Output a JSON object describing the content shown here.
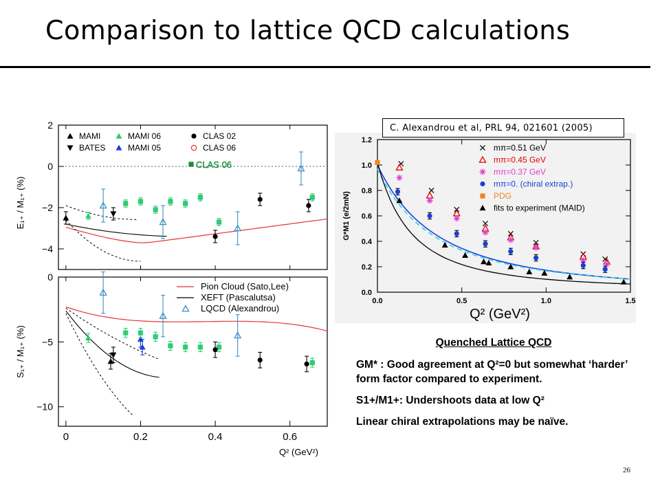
{
  "slide": {
    "title": "Comparison to lattice QCD calculations",
    "citation": "C. Alexandrou et al, PRL 94, 021601 (2005)",
    "page_number": "26",
    "notes_heading": "Quenched Lattice QCD",
    "notes": [
      "GM* : Good agreement at Q²=0 but somewhat ‘harder’ form factor compared to experiment.",
      "S1+/M1+: Undershoots data at low Q²",
      "Linear chiral extrapolations may be naïve."
    ]
  },
  "colors": {
    "clas06": "#2ecc71",
    "lqcd": "#3c8fc4",
    "pion_cloud": "#e63333",
    "mami05": "#1a3fd6",
    "pdg": "#f58220",
    "mpi051": "#000000",
    "mpi045": "#e60000",
    "mpi037": "#e03ad0",
    "chiral": "#1a3fd6",
    "dashed_fit": "#3ad5e6"
  },
  "chart_data": [
    {
      "type": "scatter",
      "panel": "E1+/M1+",
      "ylabel": "E₁₊ / M₁₊ (%)",
      "ylim": [
        -5,
        2
      ],
      "xlim": [
        -0.02,
        0.7
      ],
      "yticks": [
        "2",
        "0",
        "−2",
        "−4"
      ],
      "legend": [
        "MAMI",
        "BATES",
        "MAMI 06",
        "MAMI 05",
        "CLAS 02",
        "CLAS 06"
      ],
      "overlay_label": "CLAS 06",
      "series": [
        {
          "name": "MAMI",
          "points": [
            [
              0.0,
              -2.5
            ]
          ]
        },
        {
          "name": "BATES",
          "points": [
            [
              0.127,
              -2.3
            ]
          ]
        },
        {
          "name": "MAMI 06",
          "points": [
            [
              0.06,
              -2.4
            ]
          ]
        },
        {
          "name": "CLAS 06",
          "points": [
            [
              0.16,
              -1.8
            ],
            [
              0.2,
              -1.7
            ],
            [
              0.24,
              -2.1
            ],
            [
              0.28,
              -1.7
            ],
            [
              0.32,
              -1.8
            ],
            [
              0.36,
              -1.5
            ],
            [
              0.41,
              -2.7
            ],
            [
              0.66,
              -1.5
            ]
          ]
        },
        {
          "name": "CLAS 02",
          "points": [
            [
              0.4,
              -3.4
            ],
            [
              0.52,
              -1.6
            ],
            [
              0.65,
              -1.9
            ]
          ]
        },
        {
          "name": "LQCD",
          "points": [
            [
              0.1,
              -1.9
            ],
            [
              0.26,
              -2.7
            ],
            [
              0.46,
              -3.0
            ],
            [
              0.63,
              -0.1
            ]
          ]
        }
      ]
    },
    {
      "type": "scatter",
      "panel": "S1+/M1+",
      "ylabel": "S₁₊ / M₁₊ (%)",
      "xlabel": "Q² (GeV²)",
      "ylim": [
        -11.5,
        0
      ],
      "xlim": [
        -0.02,
        0.7
      ],
      "yticks": [
        "0",
        "−5",
        "−10"
      ],
      "xticks": [
        "0",
        "0.2",
        "0.4",
        "0.6"
      ],
      "legend": [
        "Pion Cloud (Sato,Lee)",
        "XEFT (Pascalutsa)",
        "LQCD (Alexandrou)"
      ],
      "series": [
        {
          "name": "MAMI",
          "points": [
            [
              0.12,
              -6.5
            ]
          ]
        },
        {
          "name": "BATES",
          "points": [
            [
              0.127,
              -6.0
            ]
          ]
        },
        {
          "name": "MAMI 06",
          "points": [
            [
              0.06,
              -4.7
            ]
          ]
        },
        {
          "name": "MAMI 05",
          "points": [
            [
              0.2,
              -4.8
            ],
            [
              0.205,
              -5.4
            ]
          ]
        },
        {
          "name": "CLAS 06",
          "points": [
            [
              0.16,
              -4.3
            ],
            [
              0.2,
              -4.3
            ],
            [
              0.24,
              -4.6
            ],
            [
              0.28,
              -5.3
            ],
            [
              0.32,
              -5.4
            ],
            [
              0.36,
              -5.4
            ],
            [
              0.41,
              -5.4
            ],
            [
              0.66,
              -6.6
            ]
          ]
        },
        {
          "name": "CLAS 02",
          "points": [
            [
              0.4,
              -5.6
            ],
            [
              0.52,
              -6.4
            ],
            [
              0.645,
              -6.7
            ]
          ]
        },
        {
          "name": "LQCD",
          "points": [
            [
              0.1,
              -1.2
            ],
            [
              0.26,
              -3.0
            ],
            [
              0.46,
              -4.5
            ]
          ]
        }
      ]
    },
    {
      "type": "scatter",
      "panel": "GM*",
      "ylabel": "G*M1 (e/2mN)",
      "xlabel": "Q² (GeV²)",
      "ylim": [
        0.0,
        1.2
      ],
      "xlim": [
        0.0,
        1.5
      ],
      "xticks": [
        "0.0",
        "0.5",
        "1.0",
        "1.5"
      ],
      "yticks": [
        "0.0",
        "0.2",
        "0.4",
        "0.6",
        "0.8",
        "1.0",
        "1.2"
      ],
      "legend": [
        "mπ=0.51 GeV",
        "mπ=0.45 GeV",
        "mπ=0.37 GeV",
        "mπ=0. (chiral extrap.)",
        "PDG",
        "fits to experiment (MAID)"
      ],
      "series": [
        {
          "name": "mπ=0.51 GeV",
          "points": [
            [
              0.14,
              1.01
            ],
            [
              0.32,
              0.8
            ],
            [
              0.47,
              0.65
            ],
            [
              0.64,
              0.54
            ],
            [
              0.79,
              0.46
            ],
            [
              0.94,
              0.39
            ],
            [
              1.22,
              0.3
            ],
            [
              1.35,
              0.26
            ]
          ]
        },
        {
          "name": "mπ=0.45 GeV",
          "points": [
            [
              0.13,
              0.98
            ],
            [
              0.31,
              0.76
            ],
            [
              0.47,
              0.62
            ],
            [
              0.64,
              0.5
            ],
            [
              0.79,
              0.43
            ],
            [
              0.94,
              0.36
            ],
            [
              1.22,
              0.28
            ],
            [
              1.36,
              0.24
            ]
          ]
        },
        {
          "name": "mπ=0.37 GeV",
          "points": [
            [
              0.13,
              0.9
            ],
            [
              0.31,
              0.72
            ],
            [
              0.47,
              0.58
            ],
            [
              0.64,
              0.47
            ],
            [
              0.79,
              0.41
            ],
            [
              0.94,
              0.35
            ],
            [
              1.22,
              0.25
            ],
            [
              1.36,
              0.22
            ]
          ]
        },
        {
          "name": "mπ=0. (chiral extrap.)",
          "points": [
            [
              0.12,
              0.79
            ],
            [
              0.31,
              0.6
            ],
            [
              0.47,
              0.46
            ],
            [
              0.64,
              0.38
            ],
            [
              0.79,
              0.32
            ],
            [
              0.94,
              0.27
            ],
            [
              1.22,
              0.21
            ],
            [
              1.35,
              0.18
            ]
          ]
        },
        {
          "name": "PDG",
          "points": [
            [
              0.0,
              1.02
            ]
          ]
        },
        {
          "name": "fits to experiment (MAID)",
          "points": [
            [
              0.13,
              0.72
            ],
            [
              0.4,
              0.37
            ],
            [
              0.52,
              0.29
            ],
            [
              0.63,
              0.24
            ],
            [
              0.66,
              0.23
            ],
            [
              0.79,
              0.2
            ],
            [
              0.9,
              0.16
            ],
            [
              0.99,
              0.15
            ],
            [
              1.14,
              0.12
            ],
            [
              1.46,
              0.08
            ]
          ]
        }
      ]
    }
  ]
}
